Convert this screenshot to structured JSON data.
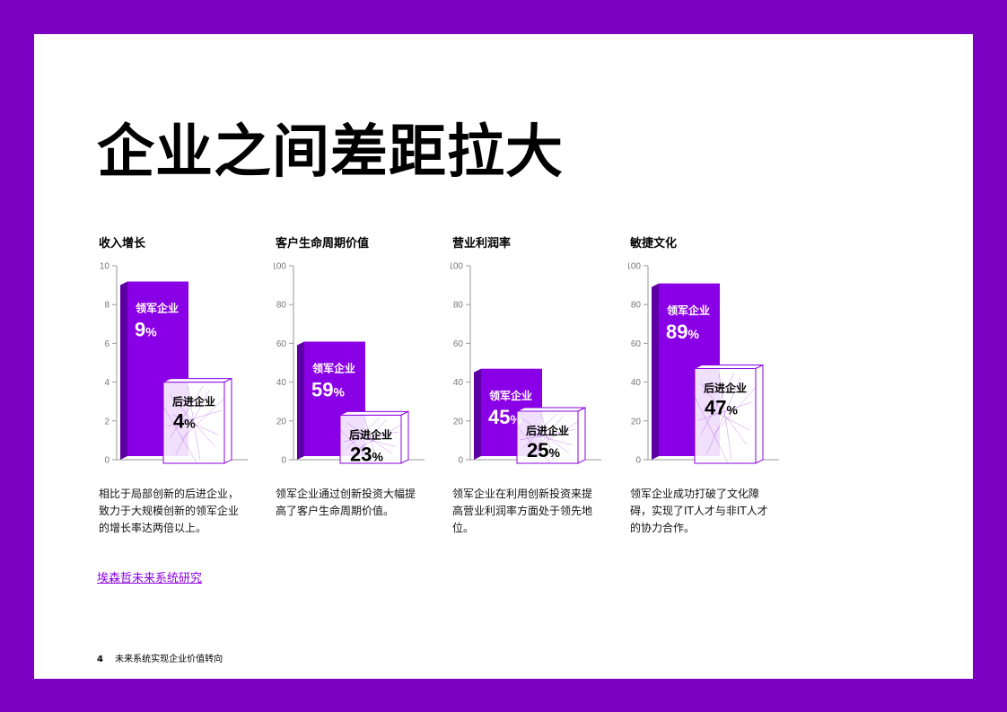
{
  "page": {
    "title": "企业之间差距拉大"
  },
  "colors": {
    "frame": "#7B00C2",
    "bar_front": "#8A00E6",
    "bar_side": "#5C00A3",
    "bar_top": "#A64DFF",
    "accent": "#8B00E0"
  },
  "chart_data": [
    {
      "type": "bar",
      "title": "收入增长",
      "ylim": [
        0,
        10
      ],
      "yticks": [
        0,
        2,
        4,
        6,
        8,
        10
      ],
      "categories": [
        "领军企业",
        "后进企业"
      ],
      "values": [
        9,
        4
      ],
      "value_labels": [
        "9",
        "4"
      ],
      "unit": "%",
      "description": "相比于局部创新的后进企业，致力于大规模创新的领军企业的增长率达两倍以上。"
    },
    {
      "type": "bar",
      "title": "客户生命周期价值",
      "ylim": [
        0,
        100
      ],
      "yticks": [
        0,
        20,
        40,
        60,
        80,
        100
      ],
      "categories": [
        "领军企业",
        "后进企业"
      ],
      "values": [
        59,
        23
      ],
      "value_labels": [
        "59",
        "23"
      ],
      "unit": "%",
      "description": "领军企业通过创新投资大幅提高了客户生命周期价值。"
    },
    {
      "type": "bar",
      "title": "营业利润率",
      "ylim": [
        0,
        100
      ],
      "yticks": [
        0,
        20,
        40,
        60,
        80,
        100
      ],
      "categories": [
        "领军企业",
        "后进企业"
      ],
      "values": [
        45,
        25
      ],
      "value_labels": [
        "45",
        "25"
      ],
      "unit": "%",
      "description": "领军企业在利用创新投资来提高营业利润率方面处于领先地位。"
    },
    {
      "type": "bar",
      "title": "敏捷文化",
      "ylim": [
        0,
        100
      ],
      "yticks": [
        0,
        20,
        40,
        60,
        80,
        100
      ],
      "categories": [
        "领军企业",
        "后进企业"
      ],
      "values": [
        89,
        47
      ],
      "value_labels": [
        "89",
        "47"
      ],
      "unit": "%",
      "description": "领军企业成功打破了文化障碍，实现了IT人才与非IT人才的协力合作。"
    }
  ],
  "link": {
    "label": "埃森哲未来系统研究"
  },
  "footer": {
    "page_number": "4",
    "text": "未来系统实现企业价值转向"
  }
}
